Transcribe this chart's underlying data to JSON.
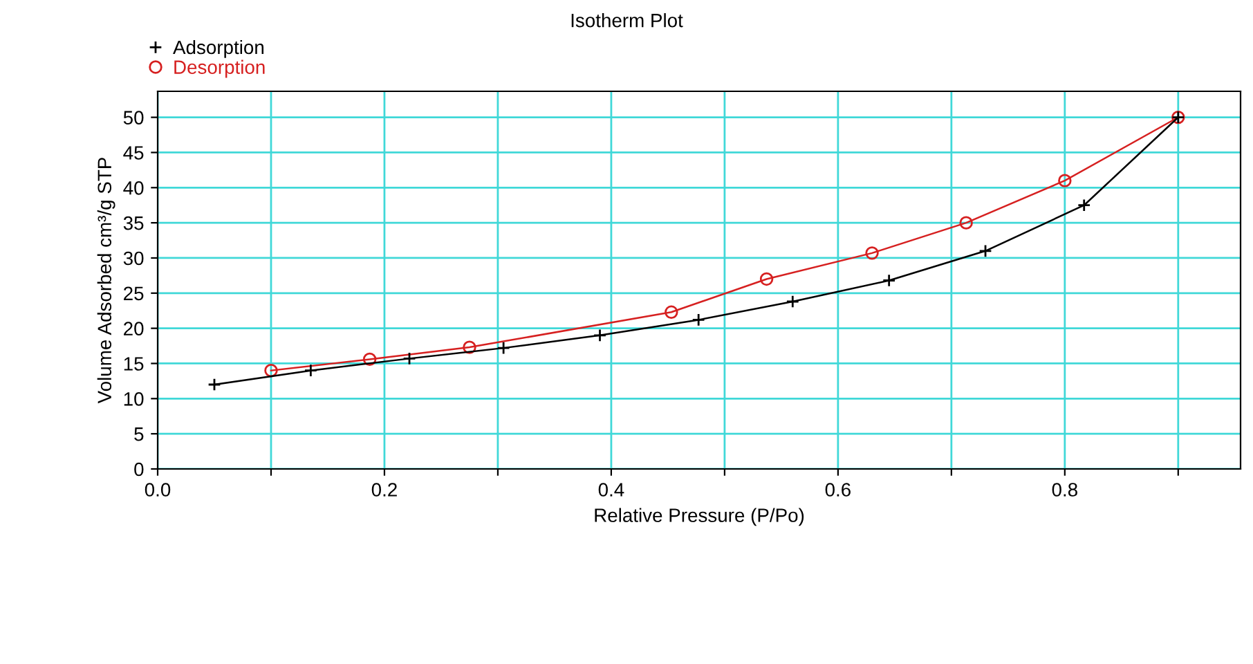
{
  "chart_data": {
    "type": "line",
    "title": "Isotherm Plot",
    "xlabel": "Relative Pressure (P/Po)",
    "ylabel": "Volume Adsorbed cm³/g STP",
    "xlim": [
      0,
      0.955
    ],
    "ylim": [
      0,
      53.7
    ],
    "xticks": [
      {
        "value": 0,
        "label": "0.0"
      },
      {
        "value": 0.1,
        "label": null
      },
      {
        "value": 0.2,
        "label": "0.2"
      },
      {
        "value": 0.3,
        "label": null
      },
      {
        "value": 0.4,
        "label": "0.4"
      },
      {
        "value": 0.5,
        "label": null
      },
      {
        "value": 0.6,
        "label": "0.6"
      },
      {
        "value": 0.7,
        "label": null
      },
      {
        "value": 0.8,
        "label": "0.8"
      },
      {
        "value": 0.9,
        "label": null
      }
    ],
    "yticks": [
      0,
      5,
      10,
      15,
      20,
      25,
      30,
      35,
      40,
      45,
      50
    ],
    "grid": true,
    "legend": "top left",
    "series": [
      {
        "name": "Adsorption",
        "color": "#000000",
        "marker": "cross",
        "x": [
          0.05,
          0.135,
          0.222,
          0.305,
          0.39,
          0.477,
          0.56,
          0.645,
          0.73,
          0.817,
          0.9
        ],
        "values": [
          12,
          14,
          15.7,
          17.2,
          19,
          21.2,
          23.8,
          26.8,
          31,
          37.5,
          50
        ]
      },
      {
        "name": "Desorption",
        "color": "#d62020",
        "marker": "circle",
        "x": [
          0.1,
          0.187,
          0.275,
          0.453,
          0.537,
          0.63,
          0.713,
          0.8,
          0.9
        ],
        "values": [
          14,
          15.6,
          17.3,
          22.3,
          27,
          30.7,
          35,
          41,
          50
        ]
      }
    ]
  }
}
